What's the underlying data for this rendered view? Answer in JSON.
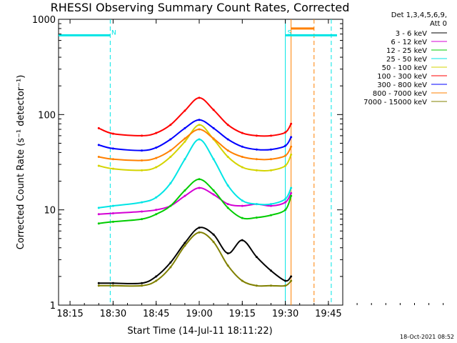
{
  "chart_data": {
    "type": "line",
    "title": "RHESSI Observing Summary Count Rates, Corrected",
    "xlabel": "Start Time (14-Jul-11 18:11:22)",
    "ylabel": "Corrected Count Rate (s⁻¹ detector⁻¹)",
    "y_scale": "log",
    "ylim": [
      1,
      1000
    ],
    "xlim": [
      "18:11",
      "19:50"
    ],
    "x_ticks": [
      "18:15",
      "18:30",
      "18:45",
      "19:00",
      "19:15",
      "19:30",
      "19:45"
    ],
    "y_ticks": [
      "1",
      "10",
      "100",
      "1000"
    ],
    "detector_info": [
      "Det 1,3,4,5,6,9,",
      "Att 0"
    ],
    "legend_position": "right",
    "series": [
      {
        "name": "3 - 6 keV",
        "color": "#000000",
        "x": [
          "18:25",
          "18:30",
          "18:40",
          "18:45",
          "18:50",
          "18:55",
          "19:00",
          "19:05",
          "19:10",
          "19:15",
          "19:20",
          "19:25",
          "19:30",
          "19:32"
        ],
        "values": [
          1.7,
          1.7,
          1.7,
          2.0,
          2.8,
          4.5,
          6.5,
          5.5,
          3.5,
          4.8,
          3.2,
          2.3,
          1.8,
          2.0
        ]
      },
      {
        "name": "6 - 12 keV",
        "color": "#d400d4",
        "x": [
          "18:25",
          "18:30",
          "18:40",
          "18:45",
          "18:50",
          "18:55",
          "19:00",
          "19:05",
          "19:10",
          "19:15",
          "19:20",
          "19:25",
          "19:30",
          "19:32"
        ],
        "values": [
          9.0,
          9.2,
          9.6,
          10.0,
          11.0,
          14.0,
          17.0,
          14.5,
          11.5,
          11.0,
          11.5,
          11.0,
          12.0,
          15.0
        ]
      },
      {
        "name": "12 - 25 keV",
        "color": "#00cc00",
        "x": [
          "18:25",
          "18:30",
          "18:40",
          "18:45",
          "18:50",
          "18:55",
          "19:00",
          "19:05",
          "19:10",
          "19:15",
          "19:20",
          "19:25",
          "19:30",
          "19:32"
        ],
        "values": [
          7.2,
          7.5,
          8.0,
          9.0,
          11.0,
          16.0,
          21.0,
          16.0,
          10.5,
          8.2,
          8.3,
          8.8,
          10.0,
          14.0
        ]
      },
      {
        "name": "25 - 50 keV",
        "color": "#00e5e5",
        "x": [
          "18:25",
          "18:30",
          "18:40",
          "18:45",
          "18:50",
          "18:55",
          "19:00",
          "19:05",
          "19:10",
          "19:15",
          "19:20",
          "19:25",
          "19:30",
          "19:32"
        ],
        "values": [
          10.5,
          11.0,
          12.0,
          13.5,
          19.0,
          34.0,
          55.0,
          34.0,
          18.0,
          12.5,
          11.5,
          11.5,
          13.0,
          17.0
        ]
      },
      {
        "name": "50 - 100 keV",
        "color": "#d4d400",
        "x": [
          "18:25",
          "18:30",
          "18:40",
          "18:45",
          "18:50",
          "18:55",
          "19:00",
          "19:05",
          "19:10",
          "19:15",
          "19:20",
          "19:25",
          "19:30",
          "19:32"
        ],
        "values": [
          29.0,
          27.0,
          26.0,
          28.0,
          36.0,
          52.0,
          78.0,
          55.0,
          36.0,
          28.0,
          26.0,
          26.0,
          29.0,
          38.0
        ]
      },
      {
        "name": "100 - 300 keV",
        "color": "#ff0000",
        "x": [
          "18:25",
          "18:30",
          "18:40",
          "18:45",
          "18:50",
          "18:55",
          "19:00",
          "19:05",
          "19:10",
          "19:15",
          "19:20",
          "19:25",
          "19:30",
          "19:32"
        ],
        "values": [
          72.0,
          63.0,
          60.0,
          64.0,
          78.0,
          110.0,
          150.0,
          112.0,
          78.0,
          64.0,
          60.0,
          60.0,
          65.0,
          80.0
        ]
      },
      {
        "name": "300 - 800 keV",
        "color": "#0000ff",
        "x": [
          "18:25",
          "18:30",
          "18:40",
          "18:45",
          "18:50",
          "18:55",
          "19:00",
          "19:05",
          "19:10",
          "19:15",
          "19:20",
          "19:25",
          "19:30",
          "19:32"
        ],
        "values": [
          48.0,
          44.0,
          42.0,
          45.0,
          55.0,
          72.0,
          88.0,
          72.0,
          55.0,
          46.0,
          43.0,
          43.0,
          47.0,
          58.0
        ]
      },
      {
        "name": "800 - 7000 keV",
        "color": "#ff8000",
        "x": [
          "18:25",
          "18:30",
          "18:40",
          "18:45",
          "18:50",
          "18:55",
          "19:00",
          "19:05",
          "19:10",
          "19:15",
          "19:20",
          "19:25",
          "19:30",
          "19:32"
        ],
        "values": [
          36.0,
          34.0,
          33.0,
          35.0,
          42.0,
          56.0,
          70.0,
          56.0,
          42.0,
          36.0,
          34.0,
          34.0,
          37.0,
          46.0
        ]
      },
      {
        "name": "7000 - 15000 keV",
        "color": "#808000",
        "x": [
          "18:25",
          "18:30",
          "18:40",
          "18:45",
          "18:50",
          "18:55",
          "19:00",
          "19:05",
          "19:10",
          "19:15",
          "19:20",
          "19:25",
          "19:30",
          "19:32"
        ],
        "values": [
          1.6,
          1.6,
          1.6,
          1.8,
          2.5,
          4.2,
          5.8,
          4.6,
          2.6,
          1.8,
          1.6,
          1.6,
          1.6,
          1.8
        ]
      }
    ],
    "annotations": [
      {
        "label": "N",
        "color": "#00e5e5",
        "x_start": "18:11",
        "x_end": "18:29",
        "level": 680
      },
      {
        "label": "S",
        "color": "#00e5e5",
        "x_start": "19:30",
        "x_end": "19:48",
        "level": 680
      },
      {
        "label": "",
        "color": "#ff8000",
        "x_start": "19:32",
        "x_end": "19:40",
        "level": 800
      }
    ],
    "vertical_markers": [
      {
        "x": "18:29",
        "color": "#00e5e5",
        "style": "dashed"
      },
      {
        "x": "19:30",
        "color": "#00e5e5",
        "style": "solid"
      },
      {
        "x": "19:46",
        "color": "#00e5e5",
        "style": "dashed"
      },
      {
        "x": "19:32",
        "color": "#ff8000",
        "style": "solid"
      },
      {
        "x": "19:40",
        "color": "#ff8000",
        "style": "dashed"
      }
    ],
    "footer_timestamp": "18-Oct-2021 08:52"
  }
}
